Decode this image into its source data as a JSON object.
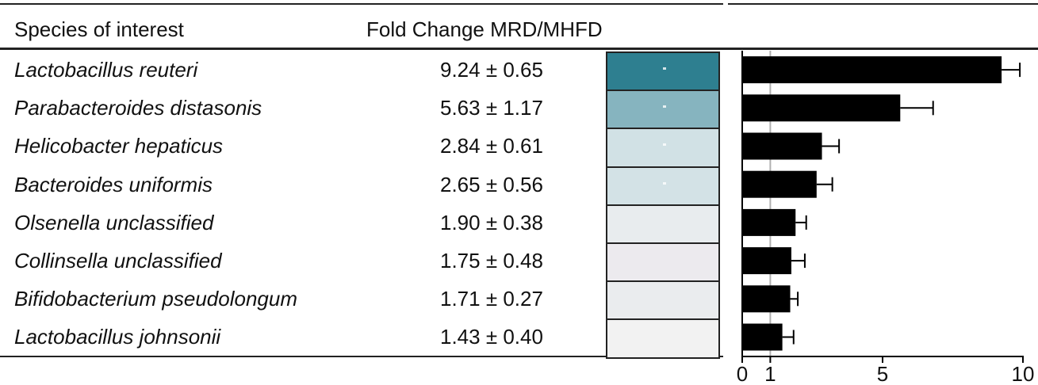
{
  "table": {
    "col_species_header": "Species of interest",
    "col_fold_header": "Fold Change MRD/MHFD",
    "rows": [
      {
        "species": "Lactobacillus reuteri",
        "value_text": "9.24 ± 0.65",
        "color": "#2e7f90"
      },
      {
        "species": "Parabacteroides distasonis",
        "value_text": "5.63 ± 1.17",
        "color": "#86b4bf"
      },
      {
        "species": "Helicobacter hepaticus",
        "value_text": "2.84 ± 0.61",
        "color": "#d1e1e5"
      },
      {
        "species": "Bacteroides uniformis",
        "value_text": "2.65 ± 0.56",
        "color": "#d3e2e6"
      },
      {
        "species": "Olsenella unclassified",
        "value_text": "1.90 ± 0.38",
        "color": "#e8ecee"
      },
      {
        "species": "Collinsella unclassified",
        "value_text": "1.75 ± 0.48",
        "color": "#eceaee"
      },
      {
        "species": "Bifidobacterium pseudolongum",
        "value_text": "1.71 ± 0.27",
        "color": "#eaecee"
      },
      {
        "species": "Lactobacillus johnsonii",
        "value_text": "1.43 ± 0.40",
        "color": "#f2f2f2"
      }
    ]
  },
  "chart_data": {
    "type": "bar",
    "orientation": "horizontal",
    "categories": [
      "Lactobacillus reuteri",
      "Parabacteroides distasonis",
      "Helicobacter hepaticus",
      "Bacteroides uniformis",
      "Olsenella unclassified",
      "Collinsella unclassified",
      "Bifidobacterium pseudolongum",
      "Lactobacillus johnsonii"
    ],
    "values": [
      9.24,
      5.63,
      2.84,
      2.65,
      1.9,
      1.75,
      1.71,
      1.43
    ],
    "errors": [
      0.65,
      1.17,
      0.61,
      0.56,
      0.38,
      0.48,
      0.27,
      0.4
    ],
    "xlim": [
      0,
      10
    ],
    "xticks": [
      0,
      1,
      5,
      10
    ],
    "reference_line": 1,
    "bar_color": "#000000",
    "title": "",
    "xlabel": "",
    "ylabel": ""
  }
}
